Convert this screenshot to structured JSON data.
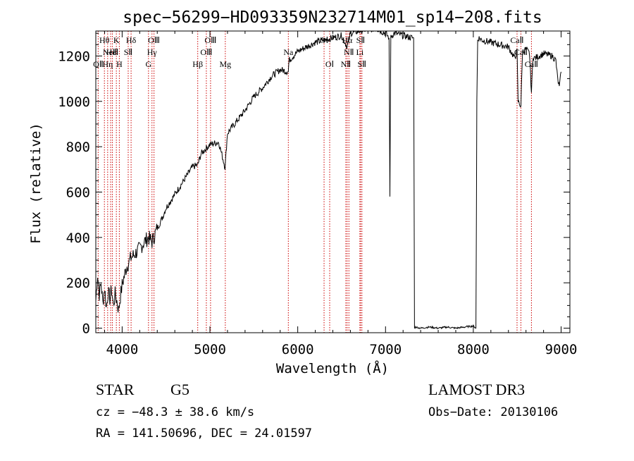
{
  "chart_data": {
    "type": "line",
    "title": "spec−56299−HD093359N232714M01_sp14−208.fits",
    "xlabel": "Wavelength (Å)",
    "ylabel": "Flux (relative)",
    "xlim": [
      3700,
      9100
    ],
    "ylim": [
      -20,
      1310
    ],
    "xticks": [
      4000,
      5000,
      6000,
      7000,
      8000,
      9000
    ],
    "xtick_labels": [
      "4000",
      "5000",
      "6000",
      "7000",
      "8000",
      "9000"
    ],
    "yticks": [
      0,
      200,
      400,
      600,
      800,
      1000,
      1200
    ],
    "ytick_labels": [
      "0",
      "200",
      "400",
      "600",
      "800",
      "1000",
      "1200"
    ],
    "grid": false,
    "series": [
      {
        "name": "flux",
        "x": [
          3700,
          3720,
          3740,
          3760,
          3780,
          3800,
          3820,
          3840,
          3860,
          3880,
          3900,
          3920,
          3940,
          3960,
          3980,
          4000,
          4050,
          4100,
          4150,
          4200,
          4250,
          4300,
          4340,
          4400,
          4450,
          4500,
          4600,
          4700,
          4800,
          4861,
          4900,
          5000,
          5100,
          5172,
          5200,
          5300,
          5400,
          5500,
          5600,
          5700,
          5800,
          5893,
          5900,
          6000,
          6100,
          6200,
          6300,
          6400,
          6500,
          6563,
          6600,
          6700,
          6800,
          6900,
          7000,
          7040,
          7050,
          7060,
          7070,
          7100,
          7200,
          7300,
          7320,
          7330,
          7340,
          7400,
          7500,
          7600,
          7700,
          7800,
          7900,
          8000,
          8030,
          8040,
          8050,
          8060,
          8100,
          8200,
          8300,
          8400,
          8470,
          8498,
          8510,
          8542,
          8560,
          8600,
          8640,
          8662,
          8680,
          8700,
          8800,
          8900,
          8940,
          8960,
          8980,
          9000
        ],
        "y": [
          120,
          240,
          150,
          200,
          110,
          180,
          90,
          160,
          130,
          170,
          100,
          150,
          120,
          80,
          140,
          190,
          270,
          310,
          330,
          350,
          380,
          400,
          380,
          440,
          480,
          530,
          590,
          650,
          710,
          720,
          770,
          810,
          820,
          710,
          860,
          910,
          960,
          1020,
          1060,
          1110,
          1140,
          1130,
          1180,
          1220,
          1240,
          1260,
          1270,
          1280,
          1290,
          1240,
          1300,
          1310,
          1320,
          1320,
          1300,
          1280,
          580,
          1280,
          1290,
          1300,
          1290,
          1280,
          1280,
          0,
          5,
          0,
          5,
          0,
          5,
          0,
          5,
          10,
          0,
          1000,
          1270,
          1280,
          1270,
          1260,
          1250,
          1240,
          1190,
          1220,
          1000,
          980,
          1220,
          1230,
          1210,
          1040,
          1200,
          1190,
          1210,
          1200,
          1180,
          1100,
          1060,
          1130
        ]
      }
    ],
    "spectral_lines": [
      {
        "label": "OⅡ",
        "wavelength": 3727,
        "label_pos": "top",
        "row": 2
      },
      {
        "label": "NeⅢ",
        "wavelength": 3869,
        "label_pos": "top",
        "row": 1
      },
      {
        "label": "Hθ",
        "wavelength": 3798,
        "label_pos": "top",
        "row": 0
      },
      {
        "label": "Hη",
        "wavelength": 3835,
        "label_pos": "top",
        "row": 2
      },
      {
        "label": "K",
        "wavelength": 3934,
        "label_pos": "top",
        "row": 0
      },
      {
        "label": "H",
        "wavelength": 3968,
        "label_pos": "top",
        "row": 2
      },
      {
        "label": "HeⅠ",
        "wavelength": 3889,
        "label_pos": "top",
        "row": 1
      },
      {
        "label": "SⅡ",
        "wavelength": 4069,
        "label_pos": "top",
        "row": 1
      },
      {
        "label": "Hδ",
        "wavelength": 4102,
        "label_pos": "top",
        "row": 0
      },
      {
        "label": "OⅢ",
        "wavelength": 4363,
        "label_pos": "top",
        "row": 0
      },
      {
        "label": "Hγ",
        "wavelength": 4340,
        "label_pos": "top",
        "row": 1
      },
      {
        "label": "G",
        "wavelength": 4300,
        "label_pos": "top",
        "row": 2
      },
      {
        "label": "Hβ",
        "wavelength": 4861,
        "label_pos": "top",
        "row": 2
      },
      {
        "label": "OⅢ",
        "wavelength": 4959,
        "label_pos": "top",
        "row": 1
      },
      {
        "label": "OⅢ",
        "wavelength": 5007,
        "label_pos": "top",
        "row": 0
      },
      {
        "label": "Mg",
        "wavelength": 5175,
        "label_pos": "top",
        "row": 2
      },
      {
        "label": "Na",
        "wavelength": 5893,
        "label_pos": "top",
        "row": 1
      },
      {
        "label": "OⅠ",
        "wavelength": 6300,
        "label_pos": "top",
        "row": 0
      },
      {
        "label": "OⅠ",
        "wavelength": 6364,
        "label_pos": "top",
        "row": 2
      },
      {
        "label": "NⅡ",
        "wavelength": 6548,
        "label_pos": "top",
        "row": 2
      },
      {
        "label": "Hα",
        "wavelength": 6563,
        "label_pos": "top",
        "row": 0
      },
      {
        "label": "NⅡ",
        "wavelength": 6583,
        "label_pos": "top",
        "row": 1
      },
      {
        "label": "Li",
        "wavelength": 6708,
        "label_pos": "top",
        "row": 1
      },
      {
        "label": "SⅡ",
        "wavelength": 6716,
        "label_pos": "top",
        "row": 0
      },
      {
        "label": "SⅡ",
        "wavelength": 6731,
        "label_pos": "top",
        "row": 2
      },
      {
        "label": "CaⅡ",
        "wavelength": 8498,
        "label_pos": "top",
        "row": 0
      },
      {
        "label": "CaⅡ",
        "wavelength": 8542,
        "label_pos": "top",
        "row": 1
      },
      {
        "label": "CaⅡ",
        "wavelength": 8662,
        "label_pos": "top",
        "row": 2
      }
    ]
  },
  "footer": {
    "object_type": "STAR",
    "subclass": "G5",
    "survey": "LAMOST DR3",
    "cz": "cz = −48.3 ± 38.6 km/s",
    "obs_date": "Obs−Date: 20130106",
    "coords": "RA = 141.50696, DEC =  24.01597"
  },
  "colors": {
    "line_marker": "#cc0000",
    "spectrum": "#000000"
  }
}
